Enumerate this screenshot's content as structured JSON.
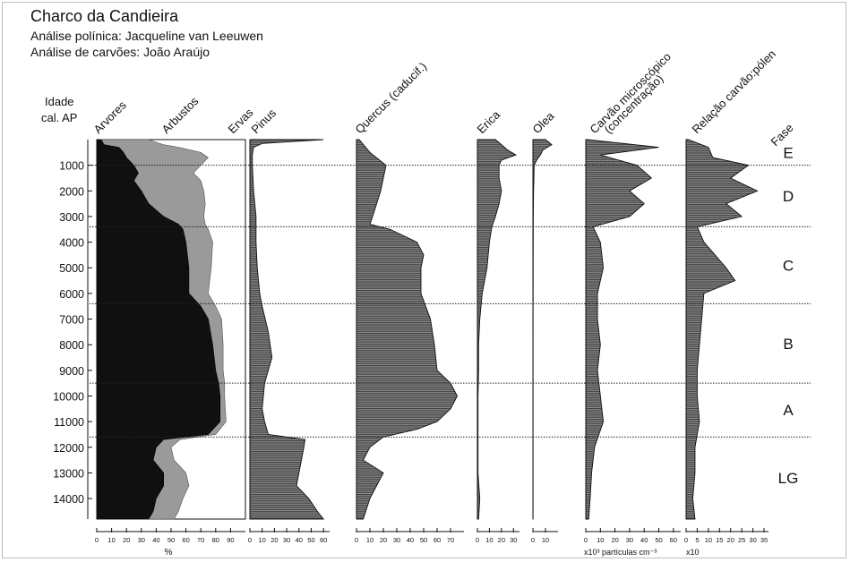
{
  "header": {
    "title": "Charco da Candieira",
    "subtitle_pollen": "Análise polínica: Jacqueline van Leeuwen",
    "subtitle_charcoal": "Análise de carvões: João Araújo"
  },
  "chart_data": {
    "type": "area",
    "y_axis": {
      "label_line1": "Idade",
      "label_line2": "cal. AP",
      "range": [
        0,
        14800
      ],
      "inverted": true,
      "ticks": [
        "1000",
        "2000",
        "3000",
        "4000",
        "5000",
        "6000",
        "7000",
        "8000",
        "9000",
        "10000",
        "11000",
        "12000",
        "13000",
        "14000"
      ]
    },
    "phase_header": "Fase",
    "phases": [
      {
        "label": "E",
        "from": 0,
        "to": 1000
      },
      {
        "label": "D",
        "from": 1000,
        "to": 3400
      },
      {
        "label": "C",
        "from": 3400,
        "to": 6400
      },
      {
        "label": "B",
        "from": 6400,
        "to": 9500
      },
      {
        "label": "A",
        "from": 9500,
        "to": 11600
      },
      {
        "label": "LG",
        "from": 11600,
        "to": 14800
      }
    ],
    "phase_boundaries": [
      1000,
      3400,
      6400,
      9500,
      11600
    ],
    "panels": [
      {
        "id": "summary",
        "headers": [
          "Arvores",
          "Arbustos",
          "Ervas"
        ],
        "x_ticks": [
          "0",
          "10",
          "20",
          "30",
          "40",
          "50",
          "60",
          "70",
          "80",
          "90"
        ],
        "xlim": [
          0,
          100
        ],
        "unit_label": "%",
        "colors": {
          "trees": "#101010",
          "shrubs": "#9a9a9a",
          "herbs": "#ffffff"
        },
        "series": [
          {
            "name": "Arvores",
            "points": [
              [
                0,
                3
              ],
              [
                200,
                5
              ],
              [
                300,
                15
              ],
              [
                500,
                18
              ],
              [
                700,
                20
              ],
              [
                1000,
                25
              ],
              [
                1300,
                28
              ],
              [
                1600,
                25
              ],
              [
                2000,
                30
              ],
              [
                2500,
                35
              ],
              [
                3000,
                45
              ],
              [
                3300,
                55
              ],
              [
                3500,
                58
              ],
              [
                4000,
                60
              ],
              [
                5000,
                62
              ],
              [
                6000,
                62
              ],
              [
                6500,
                70
              ],
              [
                7000,
                75
              ],
              [
                8000,
                78
              ],
              [
                9000,
                80
              ],
              [
                9500,
                82
              ],
              [
                10000,
                83
              ],
              [
                11000,
                83
              ],
              [
                11500,
                75
              ],
              [
                11700,
                45
              ],
              [
                12000,
                40
              ],
              [
                12500,
                38
              ],
              [
                13000,
                45
              ],
              [
                13500,
                45
              ],
              [
                14000,
                40
              ],
              [
                14500,
                38
              ],
              [
                14800,
                35
              ]
            ]
          },
          {
            "name": "Arbustos",
            "points": [
              [
                0,
                35
              ],
              [
                200,
                45
              ],
              [
                300,
                55
              ],
              [
                500,
                70
              ],
              [
                700,
                75
              ],
              [
                1000,
                70
              ],
              [
                1300,
                65
              ],
              [
                1600,
                70
              ],
              [
                2000,
                72
              ],
              [
                2500,
                73
              ],
              [
                3000,
                72
              ],
              [
                3300,
                73
              ],
              [
                3500,
                75
              ],
              [
                4000,
                78
              ],
              [
                5000,
                77
              ],
              [
                6000,
                75
              ],
              [
                6500,
                80
              ],
              [
                7000,
                84
              ],
              [
                8000,
                85
              ],
              [
                9000,
                85
              ],
              [
                9500,
                86
              ],
              [
                10000,
                86
              ],
              [
                11000,
                87
              ],
              [
                11500,
                80
              ],
              [
                11700,
                56
              ],
              [
                12000,
                50
              ],
              [
                12500,
                52
              ],
              [
                13000,
                60
              ],
              [
                13500,
                62
              ],
              [
                14000,
                58
              ],
              [
                14500,
                55
              ],
              [
                14800,
                52
              ]
            ]
          }
        ]
      },
      {
        "id": "pinus",
        "header": "Pinus",
        "x_ticks": [
          "0",
          "10",
          "20",
          "30",
          "40",
          "50",
          "60"
        ],
        "xlim": [
          0,
          65
        ],
        "fill": "#ffffff",
        "line": "#111111",
        "points": [
          [
            0,
            60
          ],
          [
            150,
            10
          ],
          [
            300,
            3
          ],
          [
            600,
            2
          ],
          [
            1000,
            2
          ],
          [
            2000,
            3
          ],
          [
            3000,
            5
          ],
          [
            4000,
            5
          ],
          [
            5000,
            6
          ],
          [
            6000,
            8
          ],
          [
            6500,
            10
          ],
          [
            7500,
            15
          ],
          [
            8500,
            18
          ],
          [
            9000,
            15
          ],
          [
            9500,
            12
          ],
          [
            10500,
            10
          ],
          [
            11000,
            12
          ],
          [
            11500,
            15
          ],
          [
            11700,
            45
          ],
          [
            12000,
            44
          ],
          [
            12500,
            42
          ],
          [
            13000,
            40
          ],
          [
            13500,
            38
          ],
          [
            14000,
            48
          ],
          [
            14500,
            55
          ],
          [
            14800,
            60
          ]
        ]
      },
      {
        "id": "quercus",
        "header": "Quercus (caducif.)",
        "x_ticks": [
          "0",
          "10",
          "20",
          "30",
          "40",
          "50",
          "60",
          "70"
        ],
        "xlim": [
          0,
          80
        ],
        "fill": "#ffffff",
        "line": "#111111",
        "points": [
          [
            0,
            2
          ],
          [
            500,
            10
          ],
          [
            1000,
            22
          ],
          [
            1500,
            20
          ],
          [
            2000,
            18
          ],
          [
            2500,
            15
          ],
          [
            3000,
            12
          ],
          [
            3300,
            10
          ],
          [
            3500,
            25
          ],
          [
            4000,
            45
          ],
          [
            4500,
            50
          ],
          [
            5000,
            48
          ],
          [
            6000,
            48
          ],
          [
            7000,
            55
          ],
          [
            8000,
            58
          ],
          [
            9000,
            60
          ],
          [
            9500,
            70
          ],
          [
            10000,
            75
          ],
          [
            10500,
            70
          ],
          [
            11000,
            60
          ],
          [
            11300,
            45
          ],
          [
            11600,
            20
          ],
          [
            12000,
            10
          ],
          [
            12500,
            5
          ],
          [
            13000,
            20
          ],
          [
            13500,
            15
          ],
          [
            14000,
            10
          ],
          [
            14800,
            5
          ]
        ]
      },
      {
        "id": "erica",
        "header": "Erica",
        "x_ticks": [
          "0",
          "10",
          "20",
          "30"
        ],
        "xlim": [
          0,
          35
        ],
        "fill": "#ffffff",
        "line": "#111111",
        "points": [
          [
            0,
            15
          ],
          [
            400,
            25
          ],
          [
            600,
            32
          ],
          [
            800,
            20
          ],
          [
            1000,
            18
          ],
          [
            1500,
            18
          ],
          [
            2000,
            20
          ],
          [
            2500,
            18
          ],
          [
            3000,
            15
          ],
          [
            3400,
            12
          ],
          [
            4000,
            10
          ],
          [
            5000,
            8
          ],
          [
            6000,
            4
          ],
          [
            7000,
            2
          ],
          [
            8000,
            1
          ],
          [
            9000,
            1
          ],
          [
            10000,
            0.5
          ],
          [
            11000,
            0.5
          ],
          [
            12000,
            0.5
          ],
          [
            13000,
            0.5
          ],
          [
            14000,
            2
          ],
          [
            14800,
            1
          ]
        ]
      },
      {
        "id": "olea",
        "header": "Olea",
        "x_ticks": [
          "0",
          "10"
        ],
        "xlim": [
          0,
          20
        ],
        "fill": "#ffffff",
        "line": "#111111",
        "points": [
          [
            0,
            10
          ],
          [
            200,
            15
          ],
          [
            400,
            8
          ],
          [
            600,
            6
          ],
          [
            800,
            3
          ],
          [
            1000,
            1
          ],
          [
            2000,
            0.5
          ],
          [
            3000,
            0.3
          ],
          [
            5000,
            0.2
          ],
          [
            8000,
            0.1
          ],
          [
            11000,
            0.1
          ],
          [
            14800,
            0.1
          ]
        ]
      },
      {
        "id": "carvao",
        "header_line1": "Carvão microscópico",
        "header_line2": "(concentração)",
        "x_ticks": [
          "0",
          "10",
          "20",
          "30",
          "40",
          "50",
          "60"
        ],
        "xlim": [
          0,
          65
        ],
        "unit_label": "x10³ partículas cm⁻³",
        "fill": "#ffffff",
        "line": "#111111",
        "points": [
          [
            0,
            1
          ],
          [
            300,
            50
          ],
          [
            600,
            10
          ],
          [
            1000,
            35
          ],
          [
            1500,
            45
          ],
          [
            2000,
            30
          ],
          [
            2500,
            40
          ],
          [
            3000,
            30
          ],
          [
            3400,
            5
          ],
          [
            4000,
            10
          ],
          [
            5000,
            12
          ],
          [
            6000,
            8
          ],
          [
            7000,
            8
          ],
          [
            8000,
            10
          ],
          [
            9000,
            8
          ],
          [
            10000,
            10
          ],
          [
            11000,
            12
          ],
          [
            12000,
            6
          ],
          [
            13000,
            4
          ],
          [
            14000,
            3
          ],
          [
            14800,
            2
          ]
        ]
      },
      {
        "id": "relacao",
        "header": "Relação carvão:pólen",
        "x_ticks": [
          "0",
          "5",
          "10",
          "15",
          "20",
          "25",
          "30",
          "35"
        ],
        "xlim": [
          0,
          37
        ],
        "unit_label": "x10",
        "fill": "#ffffff",
        "line": "#111111",
        "points": [
          [
            0,
            1
          ],
          [
            300,
            10
          ],
          [
            700,
            12
          ],
          [
            1000,
            28
          ],
          [
            1500,
            20
          ],
          [
            2000,
            32
          ],
          [
            2500,
            18
          ],
          [
            3000,
            25
          ],
          [
            3400,
            5
          ],
          [
            4000,
            8
          ],
          [
            5000,
            18
          ],
          [
            5500,
            22
          ],
          [
            6000,
            8
          ],
          [
            7000,
            7
          ],
          [
            8000,
            6
          ],
          [
            9000,
            5
          ],
          [
            10000,
            5
          ],
          [
            11000,
            6
          ],
          [
            12000,
            4
          ],
          [
            13000,
            4
          ],
          [
            14000,
            3
          ],
          [
            14800,
            4
          ]
        ]
      }
    ]
  }
}
